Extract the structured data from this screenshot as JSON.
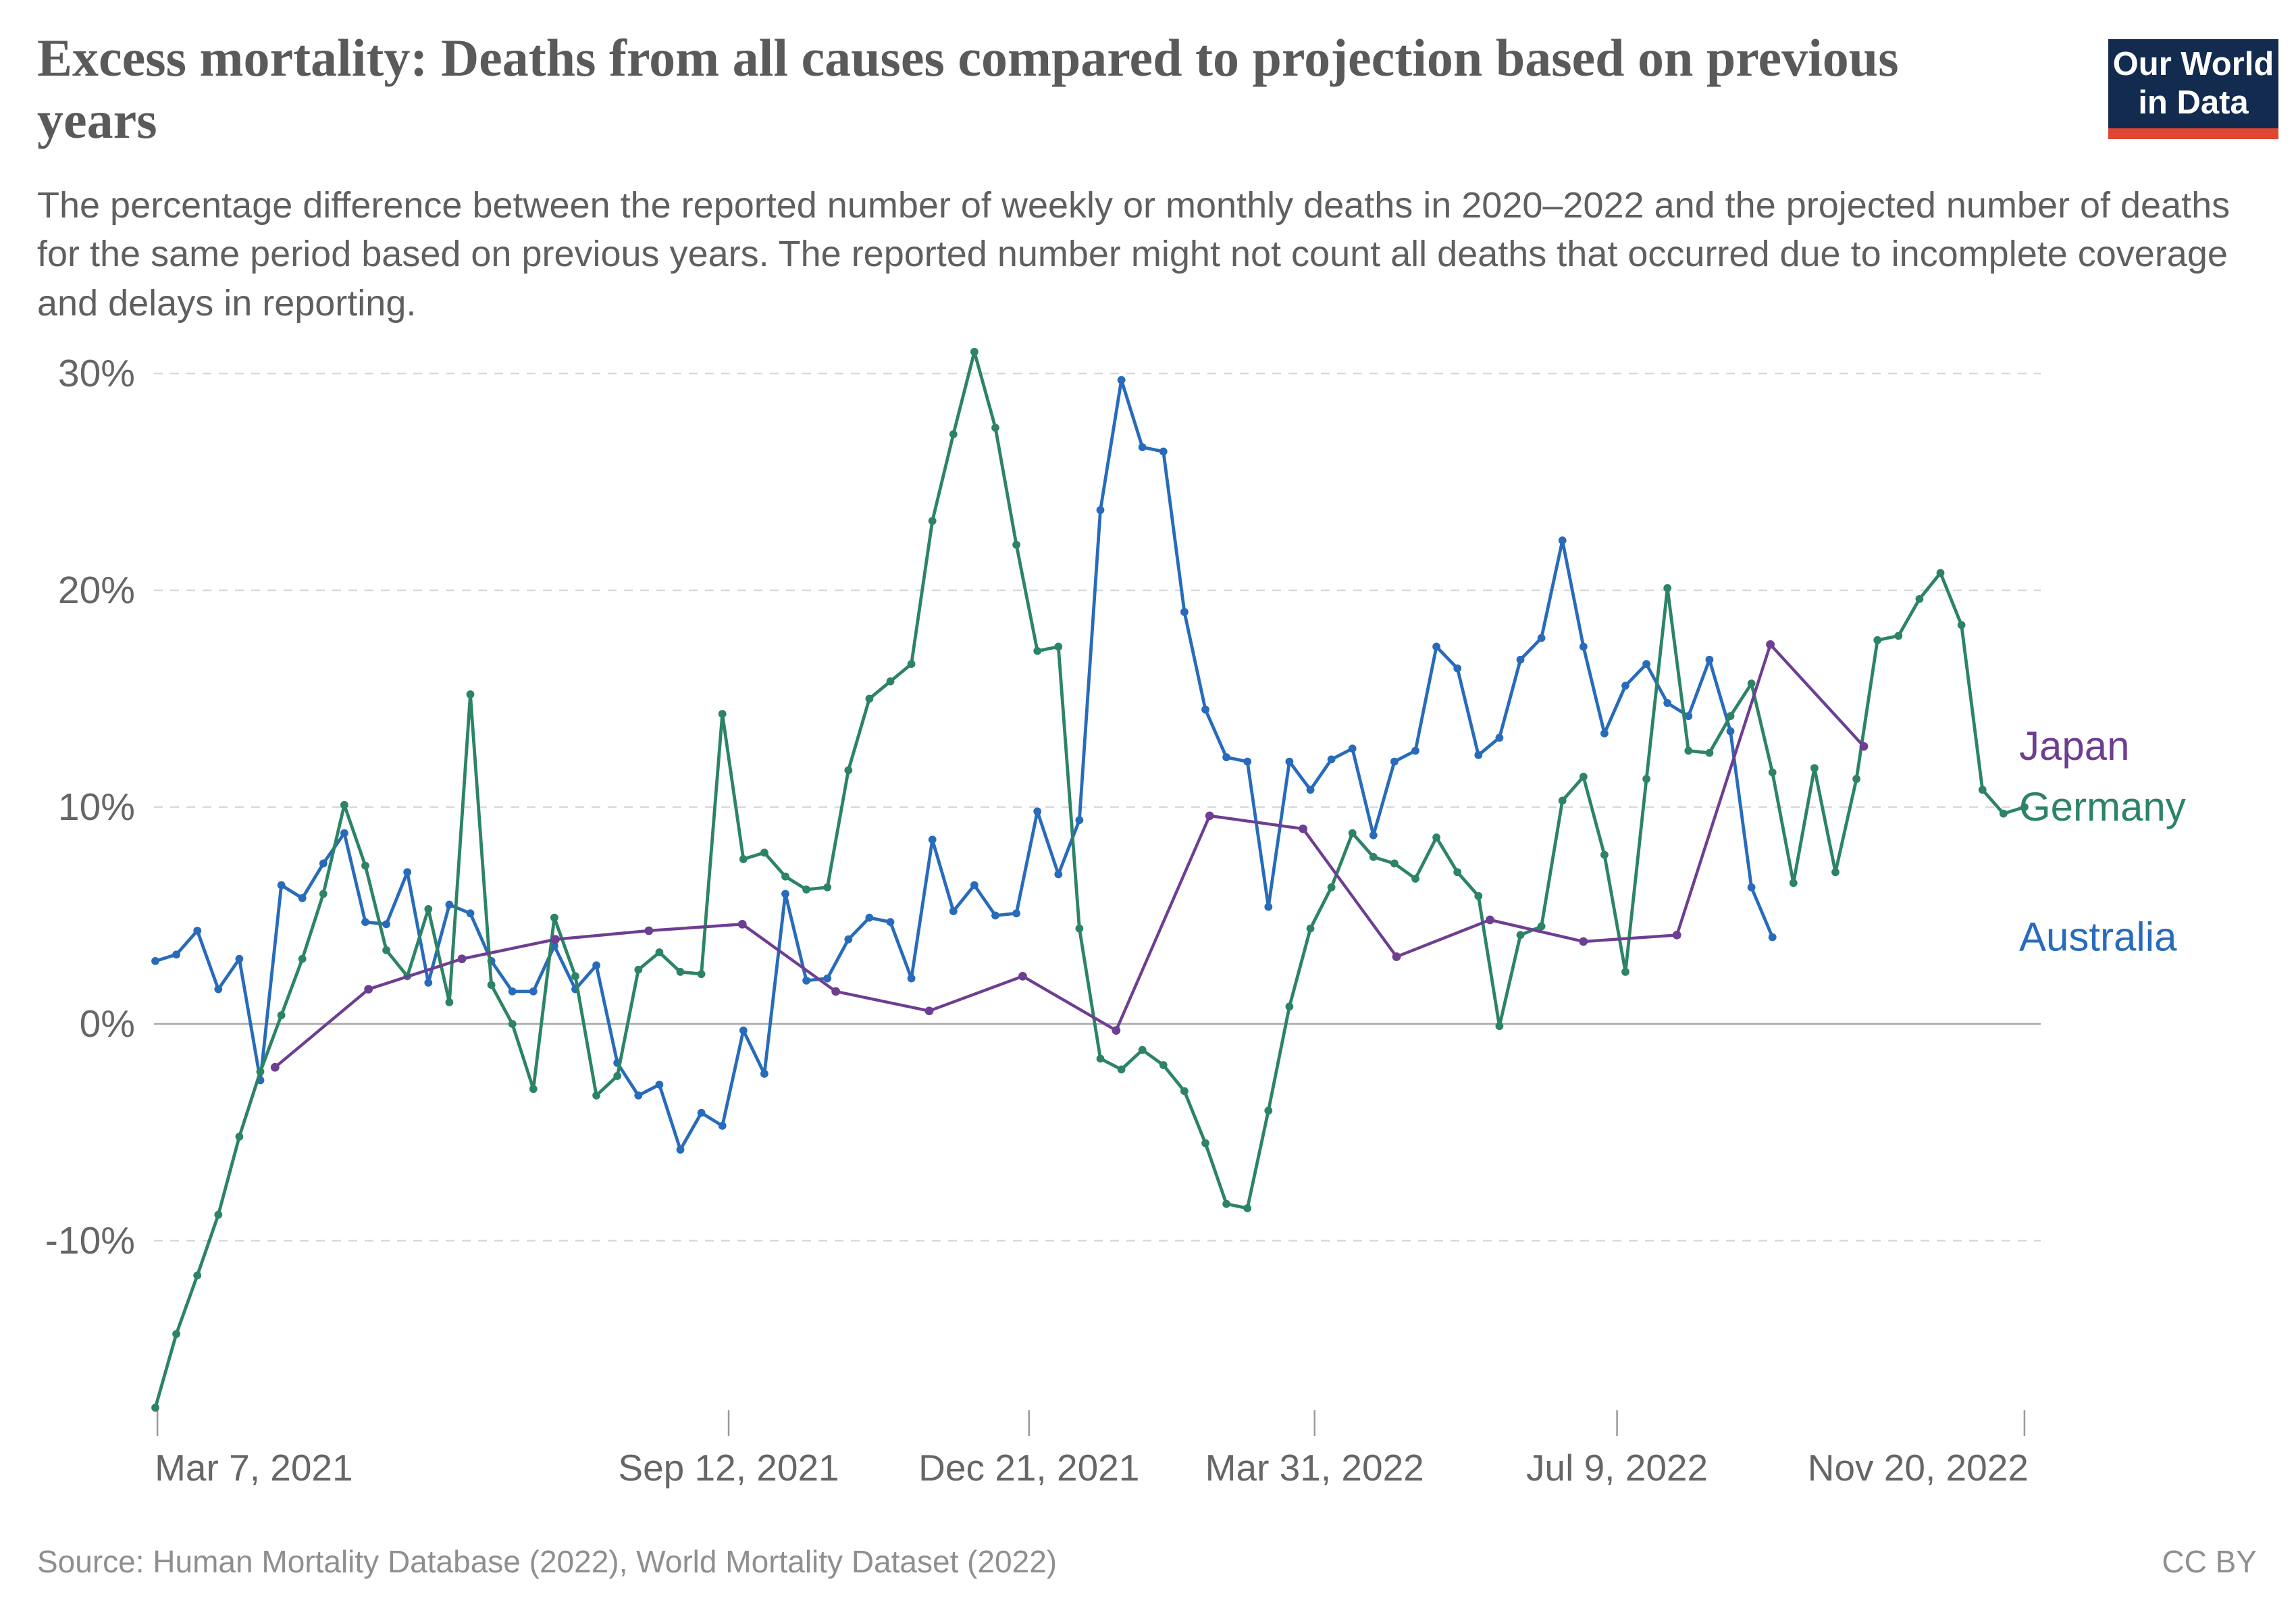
{
  "header": {
    "title": "Excess mortality: Deaths from all causes compared to projection based on previous years",
    "subtitle": "The percentage difference between the reported number of weekly or monthly deaths in 2020–2022 and the projected number of deaths for the same period based on previous years. The reported number might not count all deaths that occurred due to incomplete coverage and delays in reporting."
  },
  "logo": {
    "line1": "Our World",
    "line2": "in Data",
    "bg_color": "#122b4f",
    "bar_color": "#e04634"
  },
  "footer": {
    "source": "Source: Human Mortality Database (2022), World Mortality Dataset (2022)",
    "license": "CC BY"
  },
  "chart_data": {
    "type": "line",
    "title": "Excess mortality: Deaths from all causes compared to projection based on previous years",
    "x_unit": "weeks since Mar 7, 2021 (Germany & Australia weekly; Japan monthly)",
    "ylabel": "",
    "y_unit": "%",
    "ylim": [
      -19,
      32
    ],
    "grid": "horizontal dashed, solid zero line",
    "legend_position": "right edge of plot, colored text labels",
    "y_ticks": [
      {
        "value": 30,
        "label": "30%"
      },
      {
        "value": 20,
        "label": "20%"
      },
      {
        "value": 10,
        "label": "10%"
      },
      {
        "value": 0,
        "label": "0%"
      },
      {
        "value": -10,
        "label": "-10%"
      }
    ],
    "x_ticks": [
      {
        "week": 0.1,
        "label": "Mar 7, 2021"
      },
      {
        "week": 27.3,
        "label": "Sep 12, 2021"
      },
      {
        "week": 41.6,
        "label": "Dec 21, 2021"
      },
      {
        "week": 55.2,
        "label": "Mar 31, 2022"
      },
      {
        "week": 69.6,
        "label": "Jul 9, 2022"
      },
      {
        "week": 89.0,
        "label": "Nov 20, 2022"
      }
    ],
    "series": [
      {
        "name": "Australia",
        "color": "#286bbb",
        "start_week": 0,
        "week_step": 1,
        "values": [
          2.9,
          3.2,
          4.3,
          1.6,
          3.0,
          -2.6,
          6.4,
          5.8,
          7.4,
          8.8,
          4.7,
          4.6,
          7.0,
          1.9,
          5.5,
          5.1,
          2.9,
          1.5,
          1.5,
          3.6,
          1.6,
          2.7,
          -1.8,
          -3.3,
          -2.8,
          -5.8,
          -4.1,
          -4.7,
          -0.3,
          -2.3,
          6.0,
          2.0,
          2.1,
          3.9,
          4.9,
          4.7,
          2.1,
          8.5,
          5.2,
          6.4,
          5.0,
          5.1,
          9.8,
          6.9,
          9.4,
          23.7,
          29.7,
          26.6,
          26.4,
          19.0,
          14.5,
          12.3,
          12.1,
          5.4,
          12.1,
          10.8,
          12.2,
          12.7,
          8.7,
          12.1,
          12.6,
          17.4,
          16.4,
          12.4,
          13.2,
          16.8,
          17.8,
          22.3,
          17.4,
          13.4,
          15.6,
          16.6,
          14.8,
          14.2,
          16.8,
          13.5,
          6.3,
          4.0
        ]
      },
      {
        "name": "Germany",
        "color": "#2c8465",
        "start_week": 0,
        "week_step": 1,
        "values": [
          -17.7,
          -14.3,
          -11.6,
          -8.8,
          -5.2,
          -2.2,
          0.4,
          3.0,
          6.0,
          10.1,
          7.3,
          3.4,
          2.2,
          5.3,
          1.0,
          15.2,
          1.8,
          0.0,
          -3.0,
          4.9,
          2.2,
          -3.3,
          -2.4,
          2.5,
          3.3,
          2.4,
          2.3,
          14.3,
          7.6,
          7.9,
          6.8,
          6.2,
          6.3,
          11.7,
          15.0,
          15.8,
          16.6,
          23.2,
          27.2,
          31.0,
          27.5,
          22.1,
          17.2,
          17.4,
          4.4,
          -1.6,
          -2.1,
          -1.2,
          -1.9,
          -3.1,
          -5.5,
          -8.3,
          -8.5,
          -4.0,
          0.8,
          4.4,
          6.3,
          8.8,
          7.7,
          7.4,
          6.7,
          8.6,
          7.0,
          5.9,
          -0.1,
          4.1,
          4.5,
          10.3,
          11.4,
          7.8,
          2.4,
          11.3,
          20.1,
          12.6,
          12.5,
          14.2,
          15.7,
          11.6,
          6.5,
          11.8,
          7.0,
          11.3,
          17.7,
          17.9,
          19.6,
          20.8,
          18.4,
          10.8,
          9.7,
          10.0
        ]
      },
      {
        "name": "Japan",
        "color": "#6d3e91",
        "start_week": 5.7,
        "week_step": 4.45,
        "values": [
          -2.0,
          1.6,
          3.0,
          3.9,
          4.3,
          4.6,
          1.5,
          0.6,
          2.2,
          -0.3,
          9.6,
          9.0,
          3.1,
          4.8,
          3.8,
          4.1,
          17.5,
          12.8
        ]
      }
    ]
  }
}
